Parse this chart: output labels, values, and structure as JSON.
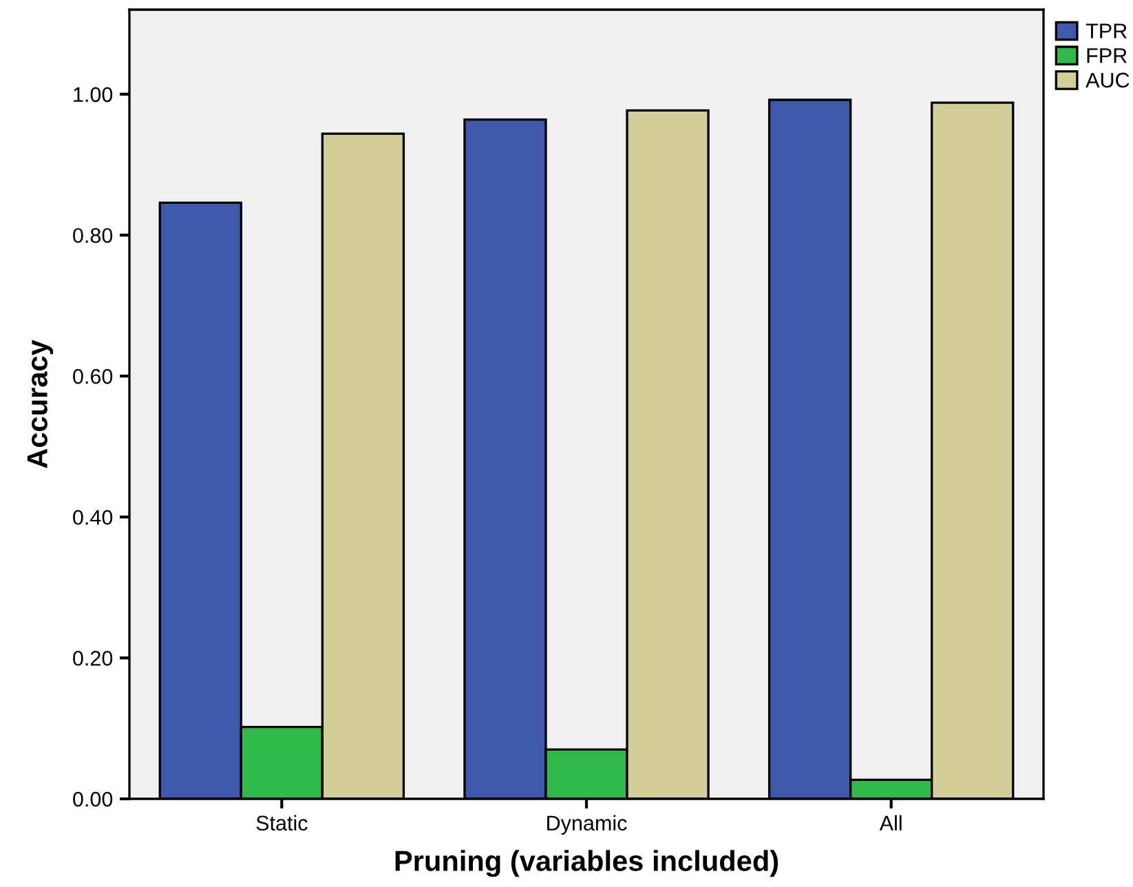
{
  "chart_data": {
    "type": "bar",
    "xlabel": "Pruning (variables included)",
    "ylabel": "Accuracy",
    "categories": [
      "Static",
      "Dynamic",
      "All"
    ],
    "series": [
      {
        "name": "TPR",
        "color": "#3e58ab",
        "values": [
          0.846,
          0.964,
          0.992
        ]
      },
      {
        "name": "FPR",
        "color": "#30b84a",
        "values": [
          0.102,
          0.07,
          0.027
        ]
      },
      {
        "name": "AUC",
        "color": "#d4ce98",
        "values": [
          0.944,
          0.977,
          0.988
        ]
      }
    ],
    "ylim": [
      0,
      1.12
    ],
    "yticks": [
      {
        "value": 0,
        "label": "0.00"
      },
      {
        "value": 0.2,
        "label": "0.20"
      },
      {
        "value": 0.4,
        "label": "0.40"
      },
      {
        "value": 0.6,
        "label": "0.60"
      },
      {
        "value": 0.8,
        "label": "0.80"
      },
      {
        "value": 1.0,
        "label": "1.00"
      }
    ],
    "grid": false,
    "legend": "top right"
  }
}
